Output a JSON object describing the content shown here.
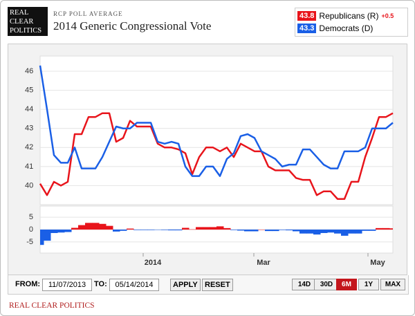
{
  "header": {
    "logo": [
      "REAL",
      "CLEAR",
      "POLITICS"
    ],
    "subtitle": "RCP POLL AVERAGE"
  },
  "chart_data": {
    "type": "line",
    "title": "2014 Generic Congressional Vote",
    "xlim": [
      0,
      51
    ],
    "xticks": [
      {
        "value": 14.9,
        "label": "2014"
      },
      {
        "value": 30.9,
        "label": "Mar"
      },
      {
        "value": 47.4,
        "label": "May"
      }
    ],
    "ylim": [
      39,
      46.8
    ],
    "yticks": [
      40,
      41,
      42,
      43,
      44,
      45,
      46
    ],
    "grid": true,
    "series": [
      {
        "name": "Republicans (R)",
        "color": "#e8141b",
        "current": "43.8",
        "change": "+0.5",
        "values": [
          40.1,
          39.5,
          40.2,
          40.0,
          40.2,
          42.7,
          42.7,
          43.6,
          43.6,
          43.8,
          43.8,
          42.3,
          42.5,
          43.4,
          43.1,
          43.1,
          43.1,
          42.2,
          42.0,
          42.0,
          41.9,
          41.7,
          40.6,
          41.5,
          42.0,
          42.0,
          41.8,
          42.0,
          41.5,
          42.2,
          42.0,
          41.8,
          41.8,
          41.0,
          40.8,
          40.8,
          40.8,
          40.4,
          40.3,
          40.3,
          39.5,
          39.7,
          39.7,
          39.3,
          39.3,
          40.2,
          40.2,
          41.5,
          42.5,
          43.6,
          43.6,
          43.8
        ]
      },
      {
        "name": "Democrats (D)",
        "color": "#1a5fe6",
        "current": "43.3",
        "values": [
          46.3,
          44.0,
          41.6,
          41.2,
          41.2,
          42.0,
          40.9,
          40.9,
          40.9,
          41.5,
          42.3,
          43.1,
          43.0,
          43.0,
          43.3,
          43.3,
          43.3,
          42.3,
          42.2,
          42.3,
          42.2,
          41.0,
          40.5,
          40.5,
          41.0,
          41.0,
          40.5,
          41.4,
          41.7,
          42.6,
          42.7,
          42.5,
          41.8,
          41.6,
          41.4,
          41.0,
          41.1,
          41.1,
          41.9,
          41.9,
          41.5,
          41.1,
          40.9,
          40.9,
          41.8,
          41.8,
          41.8,
          42.0,
          43.0,
          43.0,
          43.0,
          43.3
        ]
      }
    ],
    "spread": {
      "ylim": [
        -9.5,
        9.5
      ],
      "yticks": [
        -5,
        0,
        5
      ],
      "positive_color": "#e8141b",
      "negative_color": "#1a5fe6",
      "values": [
        -6.2,
        -4.5,
        -1.4,
        -1.2,
        -1.0,
        0.7,
        1.8,
        2.7,
        2.7,
        2.3,
        1.5,
        -0.8,
        -0.5,
        0.4,
        -0.2,
        -0.2,
        -0.2,
        -0.1,
        -0.2,
        -0.3,
        -0.3,
        0.7,
        0.1,
        1.0,
        1.0,
        1.0,
        1.3,
        0.6,
        -0.2,
        -0.4,
        -0.7,
        -0.7,
        0.0,
        -0.6,
        -0.6,
        -0.2,
        -0.3,
        -0.7,
        -1.6,
        -1.6,
        -2.0,
        -1.4,
        -1.2,
        -1.6,
        -2.5,
        -1.6,
        -1.6,
        -0.5,
        -0.5,
        0.6,
        0.6,
        0.5
      ]
    }
  },
  "controls": {
    "from_label": "FROM:",
    "from": "11/07/2013",
    "to_label": "TO:",
    "to": "05/14/2014",
    "buttons": [
      "APPLY",
      "RESET"
    ],
    "ranges": [
      "14D",
      "30D",
      "6M",
      "1Y",
      "MAX"
    ],
    "active_range": "6M",
    "active_color": "#c4161c"
  },
  "footer": "REAL CLEAR POLITICS"
}
